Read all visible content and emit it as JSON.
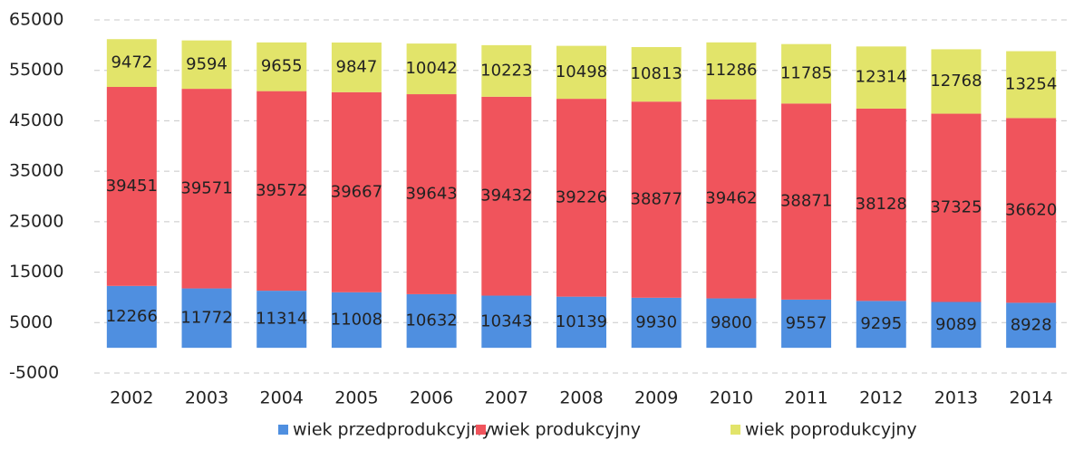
{
  "chart_data": {
    "type": "stacked_bar",
    "categories": [
      "2002",
      "2003",
      "2004",
      "2005",
      "2006",
      "2007",
      "2008",
      "2009",
      "2010",
      "2011",
      "2012",
      "2013",
      "2014"
    ],
    "series": [
      {
        "name": "wiek przedprodukcyjny",
        "color": "#4f8fe0",
        "values": [
          12266,
          11772,
          11314,
          11008,
          10632,
          10343,
          10139,
          9930,
          9800,
          9557,
          9295,
          9089,
          8928
        ]
      },
      {
        "name": "wiek produkcyjny",
        "color": "#f0545c",
        "values": [
          39451,
          39571,
          39572,
          39667,
          39643,
          39432,
          39226,
          38877,
          39462,
          38871,
          38128,
          37325,
          36620
        ]
      },
      {
        "name": "wiek poprodukcyjny",
        "color": "#e2e46a",
        "values": [
          9472,
          9594,
          9655,
          9847,
          10042,
          10223,
          10498,
          10813,
          11286,
          11785,
          12314,
          12768,
          13254
        ]
      }
    ],
    "ylim": [
      -5000,
      65000
    ],
    "yticks": [
      -5000,
      5000,
      15000,
      25000,
      35000,
      45000,
      55000,
      65000
    ],
    "grid": true,
    "legend": "bottom"
  }
}
